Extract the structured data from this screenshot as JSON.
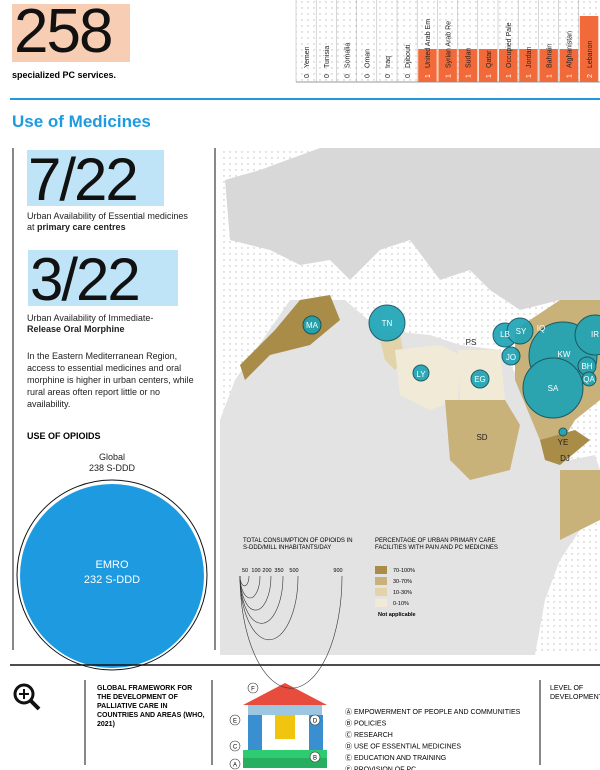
{
  "header": {
    "number": "258",
    "caption": "specialized PC services."
  },
  "pc_services": {
    "columns": [
      {
        "value": "0",
        "country": "Yemen"
      },
      {
        "value": "0",
        "country": "Tunisia"
      },
      {
        "value": "0",
        "country": "Somalia"
      },
      {
        "value": "0",
        "country": "Oman"
      },
      {
        "value": "0",
        "country": "Iraq"
      },
      {
        "value": "0",
        "country": "Djibouti"
      },
      {
        "value": "1",
        "country": "United Arab Em"
      },
      {
        "value": "1",
        "country": "Syrian Arab Re"
      },
      {
        "value": "1",
        "country": "Sudan"
      },
      {
        "value": "1",
        "country": "Qatar"
      },
      {
        "value": "1",
        "country": "Occupied Pale"
      },
      {
        "value": "1",
        "country": "Jordan"
      },
      {
        "value": "1",
        "country": "Bahrain"
      },
      {
        "value": "1",
        "country": "Afghanistan"
      },
      {
        "value": "2",
        "country": "Lebanon"
      }
    ]
  },
  "section_title": "Use of Medicines",
  "stats": [
    {
      "value": "7/22",
      "caption": "Urban Availability of Essential medicines at ",
      "caption_bold": "primary care centres"
    },
    {
      "value": "3/22",
      "caption": "Urban Availability of Immediate-",
      "caption_bold": "Release Oral Morphine"
    }
  ],
  "paragraph": "In the Eastern Mediterranean Region, access to essential medicines and oral morphine is higher in urban centers, while rural areas often report little or no availability.",
  "opioids": {
    "title": "USE OF OPIOIDS",
    "global_label": "Global",
    "global_value": "238 S-DDD",
    "emro_label": "EMRO",
    "emro_value": "232 S-DDD"
  },
  "map": {
    "labels": [
      "MA",
      "TN",
      "LY",
      "EG",
      "PS",
      "LB",
      "SY",
      "JO",
      "IQ",
      "IR",
      "KW",
      "BH",
      "QA",
      "SA",
      "YE",
      "SD",
      "DJ"
    ],
    "size_legend": {
      "title": "TOTAL CONSUMPTION OF OPIOIDS IN S-DDD/MILL INHABITANTS/DAY",
      "ticks": [
        "50",
        "100",
        "200",
        "350",
        "500",
        "900"
      ]
    },
    "color_legend": {
      "title": "PERCENTAGE OF URBAN PRIMARY CARE FACILITIES WITH PAIN AND PC MEDICINES",
      "items": [
        {
          "label": "70-100%",
          "color": "#a88c48"
        },
        {
          "label": "30-70%",
          "color": "#c9b27a"
        },
        {
          "label": "10-30%",
          "color": "#e2d3a8"
        },
        {
          "label": "0-10%",
          "color": "#f1ead6"
        },
        {
          "label": "Not applicable",
          "color": "#e4e4e4"
        }
      ]
    }
  },
  "framework": {
    "title": "GLOBAL FRAMEWORK FOR THE DEVELOPMENT OF PALLIATIVE CARE IN COUNTRIES AND AREAS (WHO, 2021)",
    "letters": [
      "A",
      "B",
      "C",
      "D",
      "E",
      "F"
    ],
    "items": [
      "Ⓐ EMPOWERMENT OF PEOPLE AND COMMUNITIES",
      "Ⓑ POLICIES",
      "Ⓒ RESEARCH",
      "Ⓓ USE OF ESSENTIAL MEDICINES",
      "Ⓔ EDUCATION AND TRAINING",
      "Ⓕ PROVISION OF PC"
    ],
    "level": "LEVEL OF DEVELOPMENT"
  }
}
